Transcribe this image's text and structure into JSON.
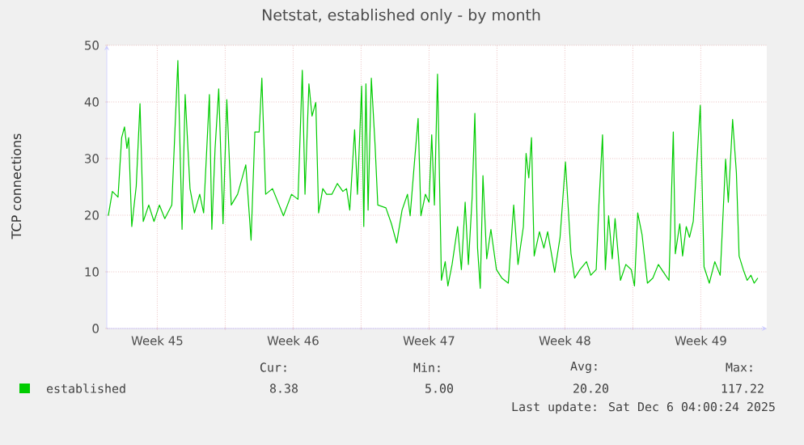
{
  "chart_data": {
    "type": "line",
    "title": "Netstat, established only - by month",
    "ylabel": "TCP connections",
    "x": [
      "2025-11-03T23:30",
      "2025-11-04T04:30",
      "2025-11-04T11:30",
      "2025-11-04T16:00",
      "2025-11-04T19:30",
      "2025-11-04T22:30",
      "2025-11-05T00:40",
      "2025-11-05T04:30",
      "2025-11-05T10:00",
      "2025-11-05T14:40",
      "2025-11-05T18:40",
      "2025-11-06T01:30",
      "2025-11-06T08:00",
      "2025-11-06T14:40",
      "2025-11-06T21:20",
      "2025-11-07T06:00",
      "2025-11-07T13:30",
      "2025-11-07T18:40",
      "2025-11-07T22:30",
      "2025-11-08T04:30",
      "2025-11-08T10:00",
      "2025-11-08T16:30",
      "2025-11-08T21:20",
      "2025-11-09T04:30",
      "2025-11-09T07:30",
      "2025-11-09T11:30",
      "2025-11-09T16:00",
      "2025-11-09T21:20",
      "2025-11-10T02:00",
      "2025-11-10T07:30",
      "2025-11-10T15:20",
      "2025-11-11T01:30",
      "2025-11-11T08:00",
      "2025-11-11T12:40",
      "2025-11-11T18:00",
      "2025-11-11T21:20",
      "2025-11-12T02:00",
      "2025-11-12T10:30",
      "2025-11-13T00:00",
      "2025-11-13T10:00",
      "2025-11-13T18:00",
      "2025-11-13T23:20",
      "2025-11-14T02:40",
      "2025-11-14T07:30",
      "2025-11-14T11:20",
      "2025-11-14T16:00",
      "2025-11-14T19:30",
      "2025-11-15T00:40",
      "2025-11-15T05:20",
      "2025-11-15T12:00",
      "2025-11-15T18:40",
      "2025-11-16T01:30",
      "2025-11-16T06:00",
      "2025-11-16T10:00",
      "2025-11-16T16:00",
      "2025-11-16T19:30",
      "2025-11-17T00:40",
      "2025-11-17T03:20",
      "2025-11-17T06:00",
      "2025-11-17T08:40",
      "2025-11-17T12:40",
      "2025-11-17T17:20",
      "2025-11-17T20:40",
      "2025-11-18T06:40",
      "2025-11-18T13:30",
      "2025-11-18T20:00",
      "2025-11-19T02:40",
      "2025-11-19T09:20",
      "2025-11-19T12:40",
      "2025-11-19T18:00",
      "2025-11-19T22:30",
      "2025-11-20T02:00",
      "2025-11-20T07:30",
      "2025-11-20T12:00",
      "2025-11-20T15:20",
      "2025-11-20T18:40",
      "2025-11-20T22:30",
      "2025-11-21T03:20",
      "2025-11-21T08:00",
      "2025-11-21T11:20",
      "2025-11-21T16:30",
      "2025-11-21T23:20",
      "2025-11-22T04:00",
      "2025-11-22T08:40",
      "2025-11-22T12:40",
      "2025-11-22T17:20",
      "2025-11-22T20:40",
      "2025-11-23T00:00",
      "2025-11-23T03:20",
      "2025-11-23T06:40",
      "2025-11-23T11:20",
      "2025-11-23T16:30",
      "2025-11-23T23:20",
      "2025-11-24T06:00",
      "2025-11-24T14:00",
      "2025-11-24T20:40",
      "2025-11-25T02:00",
      "2025-11-25T08:40",
      "2025-11-25T12:00",
      "2025-11-25T15:20",
      "2025-11-25T18:40",
      "2025-11-25T22:00",
      "2025-11-26T04:30",
      "2025-11-26T10:00",
      "2025-11-26T14:40",
      "2025-11-26T23:20",
      "2025-11-27T06:00",
      "2025-11-27T12:40",
      "2025-11-27T19:30",
      "2025-11-28T00:00",
      "2025-11-28T06:40",
      "2025-11-28T14:40",
      "2025-11-28T20:00",
      "2025-11-29T02:40",
      "2025-11-29T06:00",
      "2025-11-29T10:30",
      "2025-11-29T14:00",
      "2025-11-29T18:00",
      "2025-11-29T22:30",
      "2025-11-30T02:00",
      "2025-11-30T08:40",
      "2025-11-30T15:20",
      "2025-11-30T22:00",
      "2025-12-01T02:00",
      "2025-12-01T06:00",
      "2025-12-01T11:20",
      "2025-12-01T18:00",
      "2025-12-02T00:40",
      "2025-12-02T07:30",
      "2025-12-02T14:00",
      "2025-12-02T20:40",
      "2025-12-03T02:00",
      "2025-12-03T04:30",
      "2025-12-03T10:00",
      "2025-12-03T13:30",
      "2025-12-03T18:00",
      "2025-12-03T22:00",
      "2025-12-04T02:40",
      "2025-12-04T11:20",
      "2025-12-04T16:00",
      "2025-12-04T22:30",
      "2025-12-05T05:20",
      "2025-12-05T12:00",
      "2025-12-05T18:40",
      "2025-12-05T22:00",
      "2025-12-06T03:20",
      "2025-12-06T08:00",
      "2025-12-06T11:20",
      "2025-12-06T16:30",
      "2025-12-06T21:20",
      "2025-12-07T02:00",
      "2025-12-07T06:00",
      "2025-12-07T10:30"
    ],
    "series": [
      {
        "name": "established",
        "color": "#00cc00",
        "values": [
          19.9,
          24.2,
          23.2,
          33.7,
          35.6,
          31.8,
          33.7,
          18,
          25.1,
          39.7,
          18.9,
          21.8,
          18.9,
          21.8,
          19.4,
          21.8,
          47.3,
          17.5,
          41.3,
          24.7,
          20.4,
          23.7,
          20.4,
          41.3,
          17.5,
          31.8,
          42.3,
          18.5,
          40.4,
          21.8,
          23.7,
          28.9,
          15.6,
          34.7,
          34.7,
          44.2,
          23.7,
          24.7,
          19.9,
          23.7,
          22.8,
          45.6,
          23.7,
          43.2,
          37.5,
          39.9,
          20.4,
          24.7,
          23.7,
          23.7,
          25.6,
          24.2,
          24.7,
          20.9,
          35.1,
          23.7,
          42.8,
          18,
          43.2,
          20.9,
          44.2,
          32.3,
          21.8,
          21.3,
          18.5,
          15.1,
          20.9,
          23.7,
          19.9,
          29.4,
          37.1,
          19.9,
          23.7,
          22.3,
          34.2,
          21.8,
          44.9,
          8.5,
          11.8,
          7.5,
          11.3,
          18,
          10.4,
          22.3,
          11.3,
          23.2,
          38,
          14.2,
          7.1,
          27,
          12.3,
          17.5,
          10.4,
          8.9,
          8,
          21.8,
          11.3,
          18,
          30.9,
          26.6,
          33.7,
          12.8,
          17.1,
          14.2,
          17.1,
          9.9,
          16.1,
          29.4,
          13.2,
          8.9,
          10.4,
          11.8,
          9.4,
          10.4,
          21.8,
          34.2,
          10.4,
          19.9,
          12.3,
          19.4,
          8.5,
          11.3,
          10.4,
          7.5,
          20.4,
          16.6,
          8,
          8.9,
          11.3,
          9.9,
          8.5,
          34.7,
          13.2,
          18.5,
          12.8,
          18,
          16.1,
          18.9,
          39.4,
          10.9,
          8,
          11.8,
          9.4,
          29.9,
          22.3,
          36.9,
          27.5,
          12.8,
          10.4,
          8.5,
          9.4,
          8,
          8.9
        ]
      }
    ],
    "xlim": [
      "2025-11-03T21:36",
      "2025-12-07T21:36"
    ],
    "xticks": [
      {
        "value": "2025-11-06T12:00",
        "label": "Week 45"
      },
      {
        "value": "2025-11-10",
        "label": null
      },
      {
        "value": "2025-11-13T12:00",
        "label": "Week 46"
      },
      {
        "value": "2025-11-17",
        "label": null
      },
      {
        "value": "2025-11-20T12:00",
        "label": "Week 47"
      },
      {
        "value": "2025-11-24",
        "label": null
      },
      {
        "value": "2025-11-27T12:00",
        "label": "Week 48"
      },
      {
        "value": "2025-12-01",
        "label": null
      },
      {
        "value": "2025-12-04T12:00",
        "label": "Week 49"
      }
    ],
    "ylim": [
      0,
      50
    ],
    "yticks": [
      0,
      10,
      20,
      30,
      40,
      50
    ],
    "grid": true,
    "legend": "bottom",
    "annotations": [
      "Cur:",
      "8.38",
      "Min:",
      "5.00",
      "Avg:",
      "20.20",
      "Max:",
      "117.22",
      "Last update: Sat Dec  6 04:00:24 2025"
    ]
  }
}
